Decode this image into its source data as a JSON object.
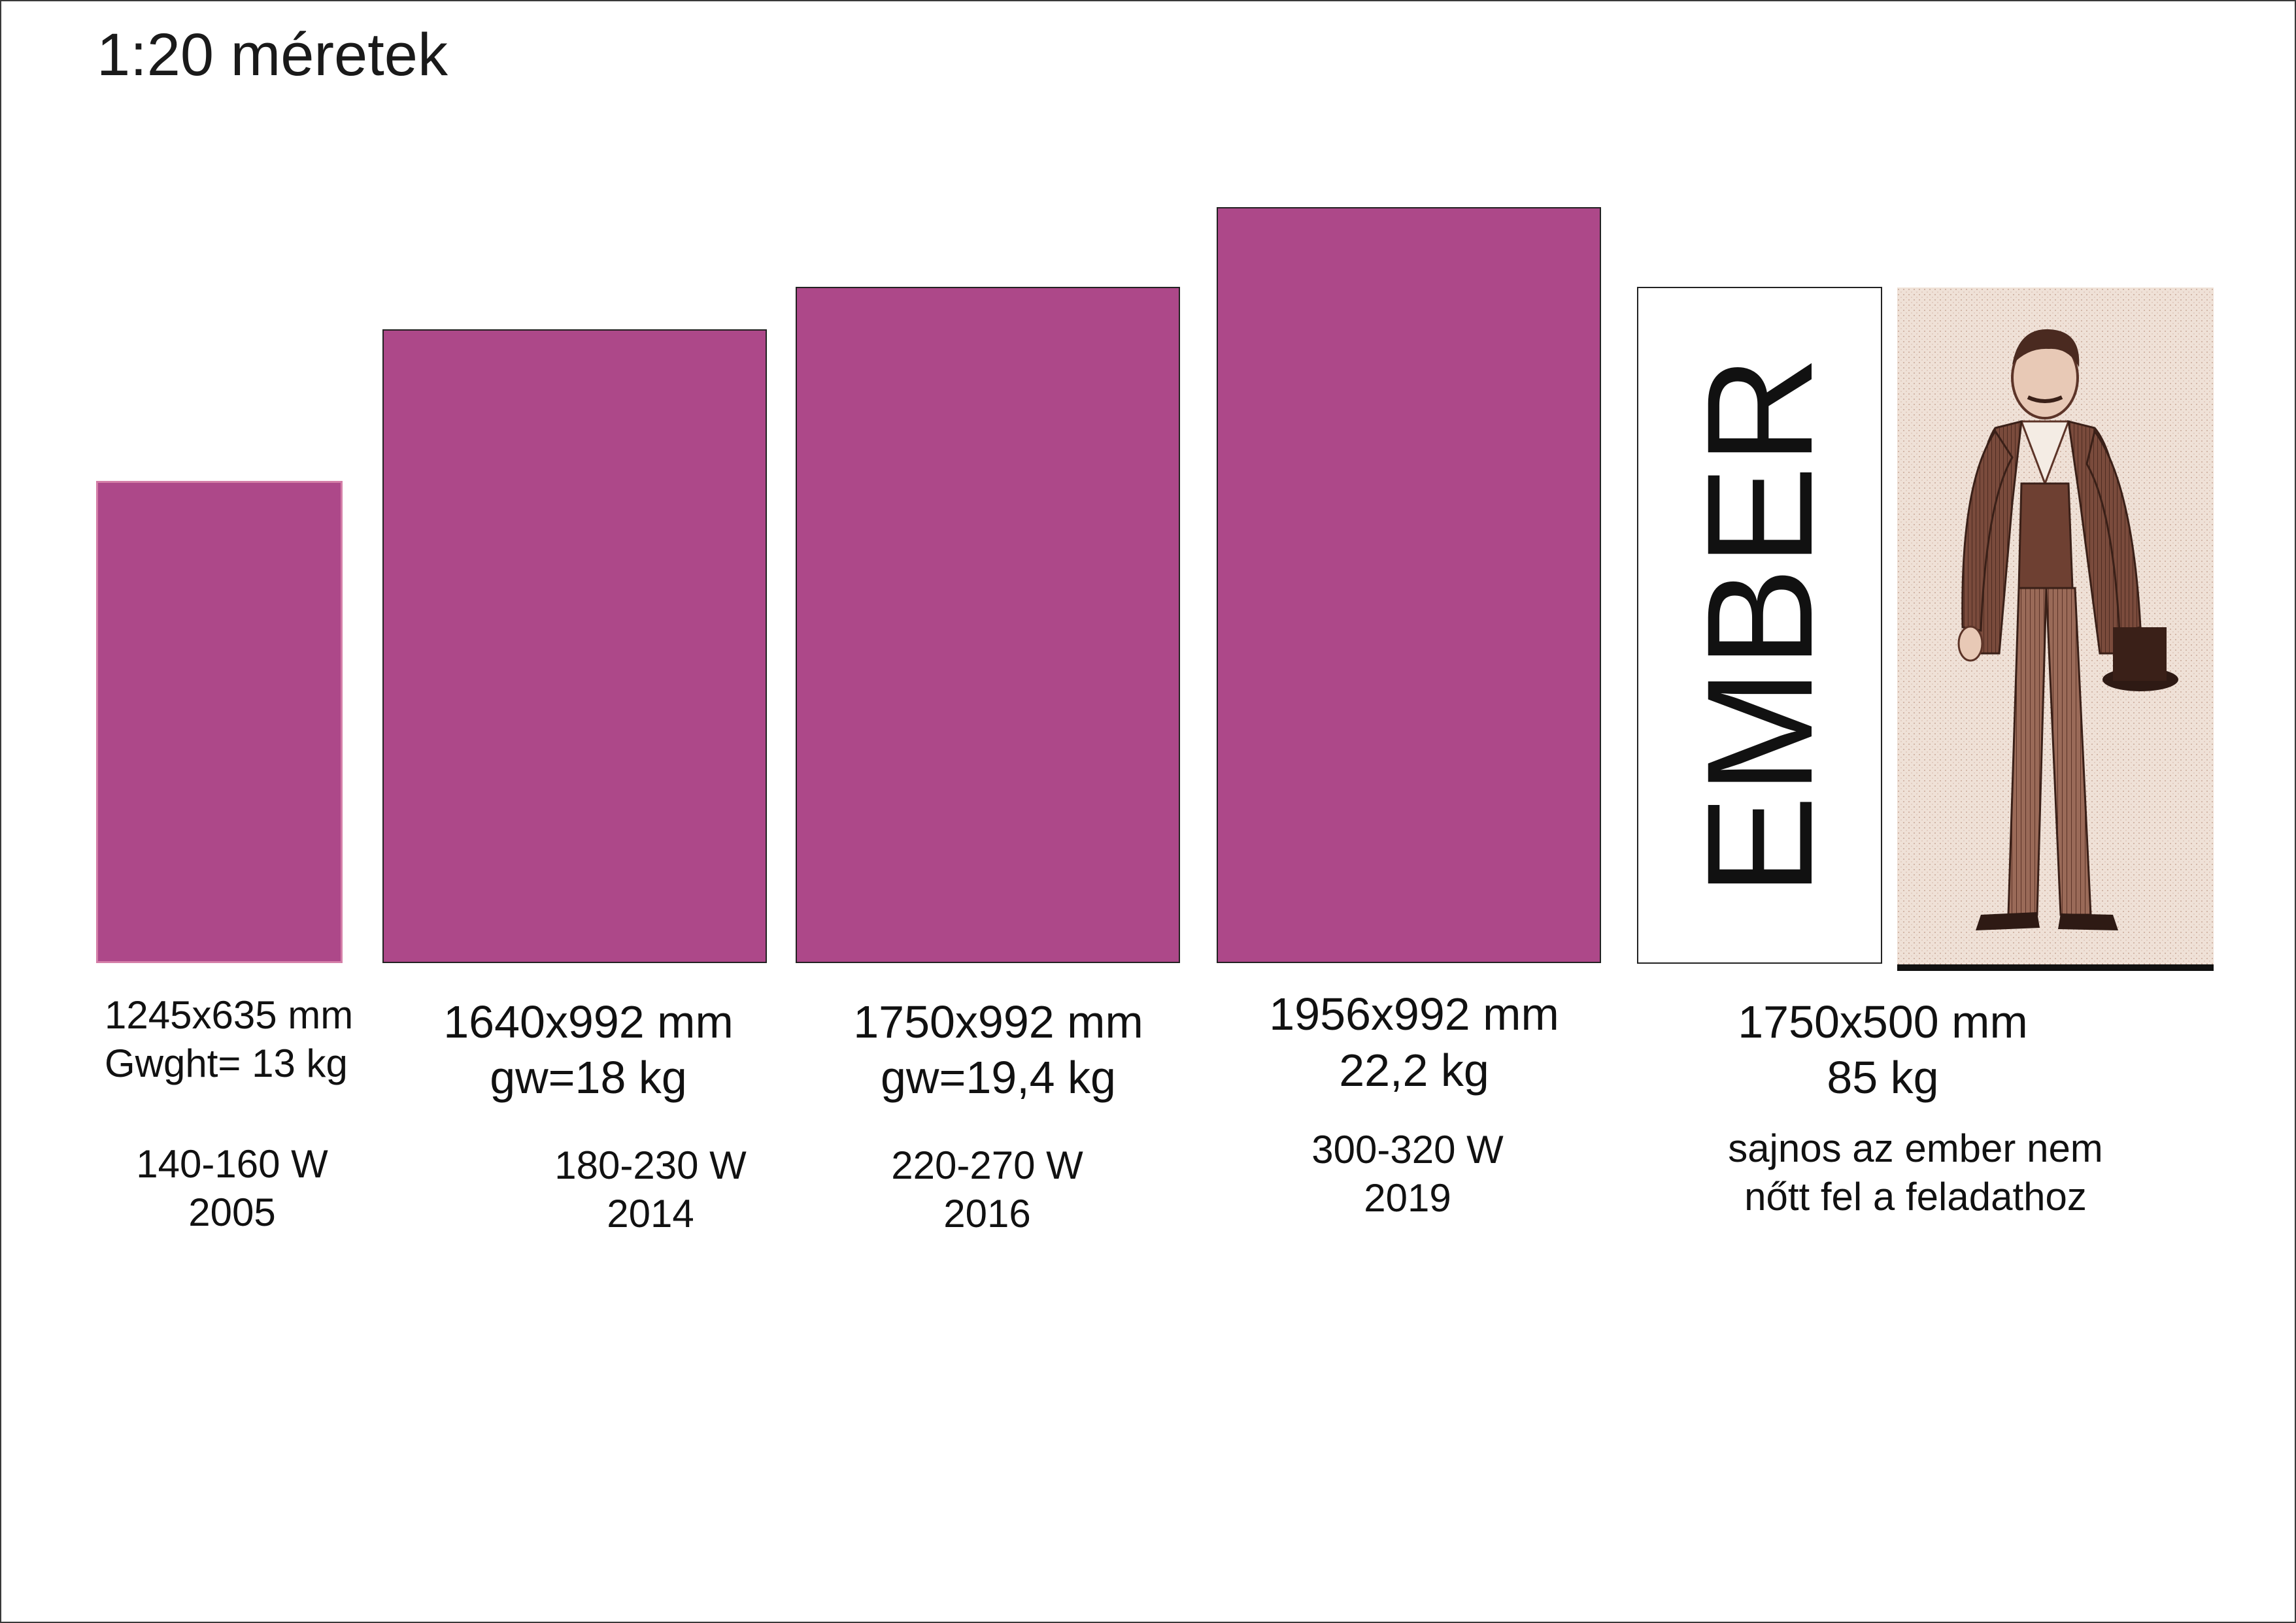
{
  "title": "1:20 méretek",
  "panels": [
    {
      "dims": "1245x635 mm",
      "weight": "Gwght= 13 kg",
      "power": "140-160 W",
      "year": "2005",
      "height_mm": 1245,
      "width_mm": 635,
      "color": "#ad4889"
    },
    {
      "dims": "1640x992 mm",
      "weight": "gw=18 kg",
      "power": "180-230 W",
      "year": "2014",
      "height_mm": 1640,
      "width_mm": 992,
      "color": "#ad4889"
    },
    {
      "dims": "1750x992 mm",
      "weight": "gw=19,4 kg",
      "power": "220-270 W",
      "year": "2016",
      "height_mm": 1750,
      "width_mm": 992,
      "color": "#ad4889"
    },
    {
      "dims": "1956x992 mm",
      "weight": "22,2 kg",
      "power": "300-320 W",
      "year": "2019",
      "height_mm": 1956,
      "width_mm": 992,
      "color": "#ad4889"
    }
  ],
  "human": {
    "box_text": "EMBER",
    "dims": "1750x500 mm",
    "weight": "85 kg",
    "note_line1": "sajnos az ember nem",
    "note_line2": "nőtt fel a feladathoz",
    "height_mm": 1750,
    "width_mm": 500
  }
}
